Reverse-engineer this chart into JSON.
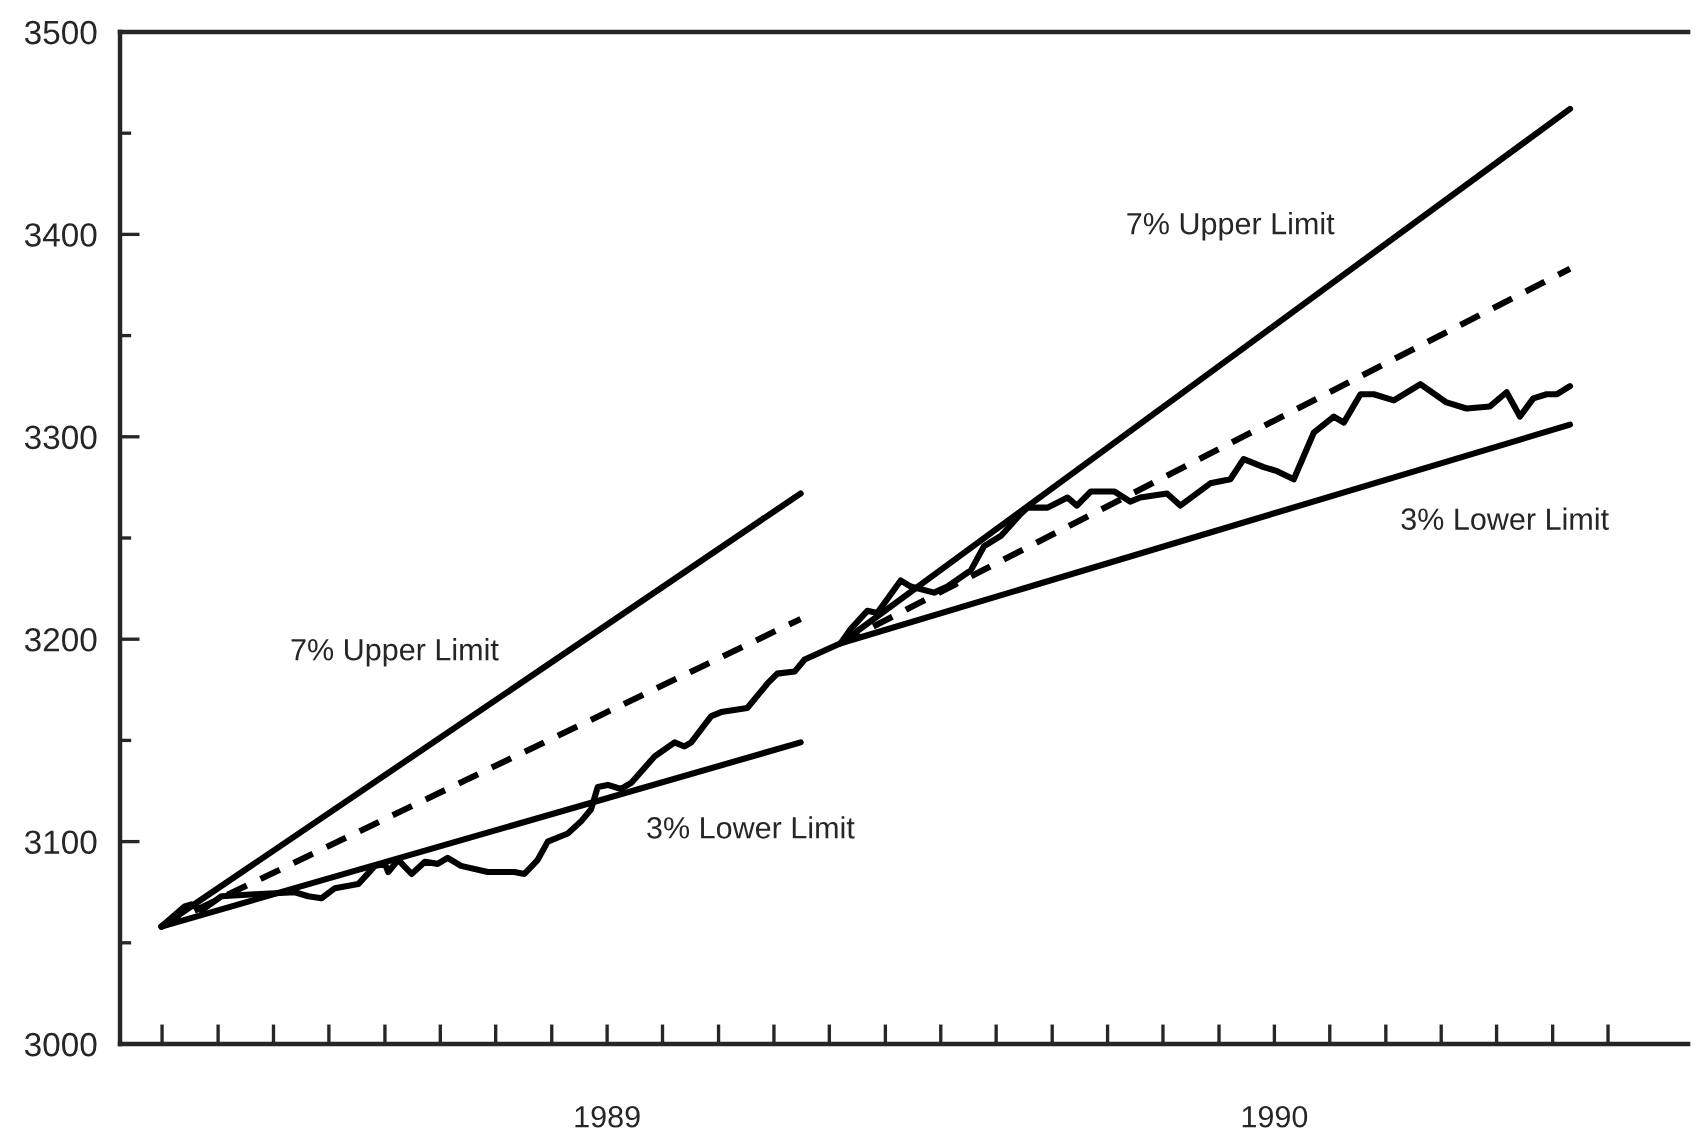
{
  "chart_data": {
    "type": "line",
    "series": [
      {
        "color": "#000000",
        "x": [
          1988.832,
          1988.867,
          1988.877,
          1988.892,
          1988.922,
          1988.972,
          1989.032,
          1989.052,
          1989.072,
          1989.092,
          1989.127,
          1989.152,
          1989.167,
          1989.172,
          1989.187,
          1989.207,
          1989.227,
          1989.246,
          1989.261,
          1989.281,
          1989.321,
          1989.361,
          1989.376,
          1989.396,
          1989.411,
          1989.441,
          1989.461,
          1989.476,
          1989.486,
          1989.501,
          1989.521,
          1989.536,
          1989.571,
          1989.601,
          1989.616,
          1989.626,
          1989.656,
          1989.671,
          1989.71,
          1989.74,
          1989.755,
          1989.781,
          1989.796,
          1989.85,
          1989.865,
          1989.89,
          1989.905,
          1989.94,
          1989.955,
          1989.99,
          1990.01,
          1990.045,
          1990.065,
          1990.09,
          1990.12,
          1990.13,
          1990.16,
          1990.19,
          1990.204,
          1990.225,
          1990.26,
          1990.284,
          1990.299,
          1990.339,
          1990.359,
          1990.404,
          1990.434,
          1990.454,
          1990.484,
          1990.504,
          1990.529,
          1990.559,
          1990.589,
          1990.604,
          1990.629,
          1990.649,
          1990.679,
          1990.719,
          1990.758,
          1990.788,
          1990.823,
          1990.848,
          1990.868,
          1990.888,
          1990.908,
          1990.923,
          1990.943
        ],
        "values": [
          3058,
          3068,
          3069,
          3066,
          3073,
          3074,
          3075,
          3073,
          3072,
          3077,
          3079,
          3088,
          3089,
          3085,
          3091,
          3084,
          3090,
          3089,
          3092,
          3088,
          3085,
          3085,
          3084,
          3091,
          3100,
          3104,
          3110,
          3116,
          3127,
          3128,
          3126,
          3129,
          3142,
          3149,
          3147,
          3149,
          3162,
          3164,
          3166,
          3178,
          3183,
          3184,
          3190,
          3198,
          3205,
          3214,
          3213,
          3229,
          3226,
          3223,
          3226,
          3234,
          3246,
          3251,
          3262,
          3265,
          3265,
          3270,
          3266,
          3273,
          3273,
          3268,
          3270,
          3272,
          3266,
          3277,
          3279,
          3289,
          3285,
          3283,
          3279,
          3302,
          3310,
          3307,
          3321,
          3321,
          3318,
          3326,
          3317,
          3314,
          3315,
          3322,
          3310,
          3319,
          3321,
          3321,
          3325
        ]
      },
      {
        "color": "#000000",
        "x": [
          1988.832,
          1989.79,
          1989.82,
          1989.85,
          1990.943
        ],
        "values": [
          3058,
          3272,
          null,
          3198,
          3462
        ]
      },
      {
        "color": "#000000",
        "line_style": "dashed",
        "x": [
          1988.832,
          1989.79,
          1989.82,
          1989.85,
          1990.943
        ],
        "values": [
          3058,
          3210,
          null,
          3198,
          3383
        ]
      },
      {
        "color": "#000000",
        "x": [
          1988.832,
          1989.79,
          1989.82,
          1989.85,
          1990.943
        ],
        "values": [
          3058,
          3149,
          null,
          3198,
          3306
        ]
      }
    ],
    "annotations": [
      "7% Upper Limit",
      "3% Lower Limit",
      "7% Upper Limit",
      "3% Lower Limit"
    ],
    "xlim": [
      1988.77,
      1991.12
    ],
    "xticks": [
      {
        "value": 1988.833,
        "label": null
      },
      {
        "value": 1988.917,
        "label": null
      },
      {
        "value": 1989,
        "label": null
      },
      {
        "value": 1989.083,
        "label": null
      },
      {
        "value": 1989.167,
        "label": null
      },
      {
        "value": 1989.25,
        "label": null
      },
      {
        "value": 1989.333,
        "label": null
      },
      {
        "value": 1989.417,
        "label": null
      },
      {
        "value": 1989.5,
        "label": "1989"
      },
      {
        "value": 1989.583,
        "label": null
      },
      {
        "value": 1989.667,
        "label": null
      },
      {
        "value": 1989.75,
        "label": null
      },
      {
        "value": 1989.833,
        "label": null
      },
      {
        "value": 1989.917,
        "label": null
      },
      {
        "value": 1990,
        "label": null
      },
      {
        "value": 1990.083,
        "label": null
      },
      {
        "value": 1990.167,
        "label": null
      },
      {
        "value": 1990.25,
        "label": null
      },
      {
        "value": 1990.333,
        "label": null
      },
      {
        "value": 1990.417,
        "label": null
      },
      {
        "value": 1990.5,
        "label": "1990"
      },
      {
        "value": 1990.583,
        "label": null
      },
      {
        "value": 1990.667,
        "label": null
      },
      {
        "value": 1990.75,
        "label": null
      },
      {
        "value": 1990.833,
        "label": null
      },
      {
        "value": 1990.917,
        "label": null
      },
      {
        "value": 1991,
        "label": null
      }
    ],
    "ylim": [
      3000,
      3500
    ],
    "yticks": [
      3000,
      {
        "value": 3050,
        "label": null
      },
      3100,
      {
        "value": 3150,
        "label": null
      },
      3200,
      {
        "value": 3250,
        "label": null
      },
      3300,
      {
        "value": 3350,
        "label": null
      },
      3400,
      {
        "value": 3450,
        "label": null
      },
      3500
    ]
  }
}
